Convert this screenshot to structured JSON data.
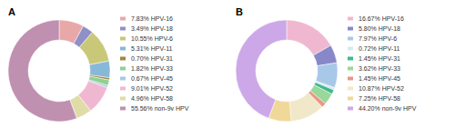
{
  "chart_data": [
    {
      "type": "pie",
      "title": "A",
      "legend": "right",
      "data_labels": false,
      "categories": [
        "7.83% HPV-16",
        "3.49% HPV-18",
        "10.55% HPV-6",
        "5.31% HPV-11",
        "0.70% HPV-31",
        "1.82% HPV-33",
        "0.67% HPV-45",
        "9.01% HPV-52",
        "4.96% HPV-58",
        "55.56% non-9v HPV"
      ],
      "values": [
        7.83,
        3.49,
        10.55,
        5.31,
        0.7,
        1.82,
        0.67,
        9.01,
        4.96,
        55.56
      ],
      "colors": [
        "#e8a8a8",
        "#9090c8",
        "#c8c878",
        "#88b8d8",
        "#a08840",
        "#90d090",
        "#a8c8e8",
        "#f0b8d0",
        "#e0dca8",
        "#c090b0"
      ]
    },
    {
      "type": "pie",
      "title": "B",
      "legend": "right",
      "data_labels": false,
      "categories": [
        "16.67% HPV-16",
        "5.80% HPV-18",
        "7.97% HPV-6",
        "0.72% HPV-11",
        "1.45% HPV-31",
        "3.62% HPV-33",
        "1.45% HPV-45",
        "10.87% HPV-52",
        "7.25% HPV-58",
        "44.20% non-9v HPV"
      ],
      "values": [
        16.67,
        5.8,
        7.97,
        0.72,
        1.45,
        3.62,
        1.45,
        10.87,
        7.25,
        44.2
      ],
      "colors": [
        "#f0b8d0",
        "#8888c8",
        "#a8c8e8",
        "#d8e8f0",
        "#40b890",
        "#98d898",
        "#e89888",
        "#f0e8c8",
        "#f0d898",
        "#cca8e8"
      ]
    }
  ]
}
